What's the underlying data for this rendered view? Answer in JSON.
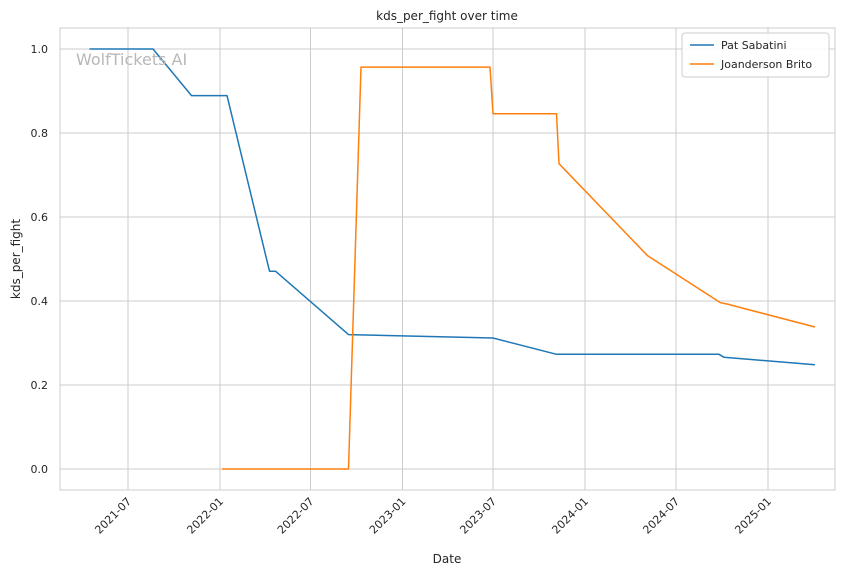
{
  "watermark": "WolfTickets AI",
  "chart_data": {
    "type": "line",
    "title": "kds_per_fight over time",
    "xlabel": "Date",
    "ylabel": "kds_per_fight",
    "xlim": [
      "2021-02-15",
      "2025-05-15"
    ],
    "ylim": [
      -0.05,
      1.05
    ],
    "grid": true,
    "legend_position": "top-right",
    "x_ticks": [
      "2021-07",
      "2022-01",
      "2022-07",
      "2023-01",
      "2023-07",
      "2024-01",
      "2024-07",
      "2025-01"
    ],
    "y_ticks": [
      "0.0",
      "0.2",
      "0.4",
      "0.6",
      "0.8",
      "1.0"
    ],
    "series": [
      {
        "name": "Pat Sabatini",
        "color": "#1f77b4",
        "points": [
          {
            "x": "2021-04-15",
            "y": 1.0
          },
          {
            "x": "2021-08-20",
            "y": 1.0
          },
          {
            "x": "2021-11-05",
            "y": 0.889
          },
          {
            "x": "2022-01-15",
            "y": 0.889
          },
          {
            "x": "2022-04-10",
            "y": 0.471
          },
          {
            "x": "2022-04-22",
            "y": 0.471
          },
          {
            "x": "2022-09-15",
            "y": 0.32
          },
          {
            "x": "2023-07-01",
            "y": 0.312
          },
          {
            "x": "2023-11-05",
            "y": 0.273
          },
          {
            "x": "2024-09-25",
            "y": 0.273
          },
          {
            "x": "2024-10-05",
            "y": 0.266
          },
          {
            "x": "2025-04-05",
            "y": 0.248
          }
        ]
      },
      {
        "name": "Joanderson Brito",
        "color": "#ff7f0e",
        "points": [
          {
            "x": "2022-01-05",
            "y": 0.0
          },
          {
            "x": "2022-09-15",
            "y": 0.0
          },
          {
            "x": "2022-10-10",
            "y": 0.957
          },
          {
            "x": "2023-06-25",
            "y": 0.957
          },
          {
            "x": "2023-07-01",
            "y": 0.846
          },
          {
            "x": "2023-11-05",
            "y": 0.846
          },
          {
            "x": "2023-11-10",
            "y": 0.727
          },
          {
            "x": "2024-05-05",
            "y": 0.508
          },
          {
            "x": "2024-09-28",
            "y": 0.396
          },
          {
            "x": "2024-10-10",
            "y": 0.393
          },
          {
            "x": "2025-04-05",
            "y": 0.338
          }
        ]
      }
    ]
  }
}
